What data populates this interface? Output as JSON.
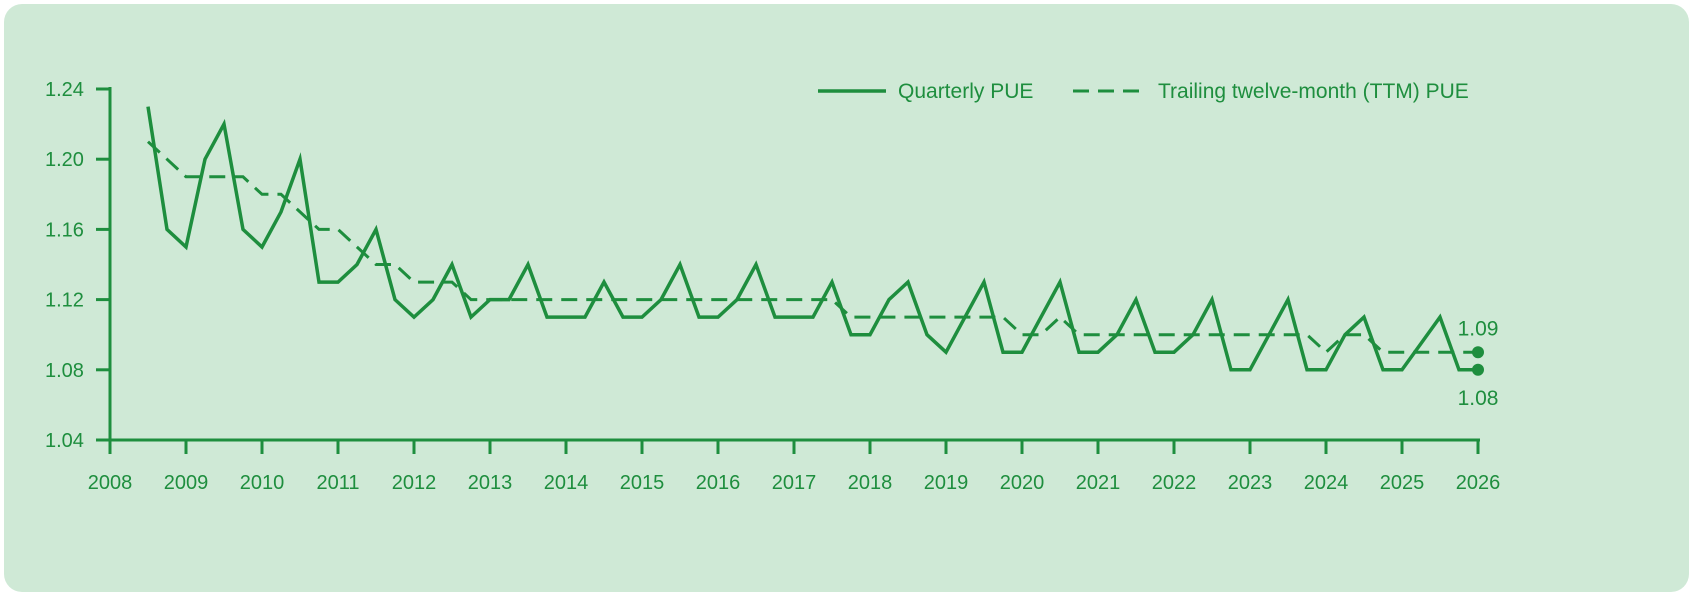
{
  "chart_data": {
    "type": "line",
    "title": "",
    "xlabel": "",
    "ylabel": "",
    "xlim": [
      2008,
      2026
    ],
    "ylim": [
      1.04,
      1.24
    ],
    "x_ticks": [
      "2008",
      "2009",
      "2010",
      "2011",
      "2012",
      "2013",
      "2014",
      "2015",
      "2016",
      "2017",
      "2018",
      "2019",
      "2020",
      "2021",
      "2022",
      "2023",
      "2024",
      "2025",
      "2026"
    ],
    "y_ticks": [
      "1.04",
      "1.08",
      "1.12",
      "1.16",
      "1.20",
      "1.24"
    ],
    "grid": false,
    "legend_position": "top-right",
    "series": [
      {
        "name": "Quarterly PUE",
        "style": "solid",
        "color": "#1e8e3e",
        "points": [
          [
            2008.5,
            1.23
          ],
          [
            2008.75,
            1.16
          ],
          [
            2009.0,
            1.15
          ],
          [
            2009.25,
            1.2
          ],
          [
            2009.5,
            1.22
          ],
          [
            2009.75,
            1.16
          ],
          [
            2010.0,
            1.15
          ],
          [
            2010.25,
            1.17
          ],
          [
            2010.5,
            1.2
          ],
          [
            2010.75,
            1.13
          ],
          [
            2011.0,
            1.13
          ],
          [
            2011.25,
            1.14
          ],
          [
            2011.5,
            1.16
          ],
          [
            2011.75,
            1.12
          ],
          [
            2012.0,
            1.11
          ],
          [
            2012.25,
            1.12
          ],
          [
            2012.5,
            1.14
          ],
          [
            2012.75,
            1.11
          ],
          [
            2013.0,
            1.12
          ],
          [
            2013.25,
            1.12
          ],
          [
            2013.5,
            1.14
          ],
          [
            2013.75,
            1.11
          ],
          [
            2014.0,
            1.11
          ],
          [
            2014.25,
            1.11
          ],
          [
            2014.5,
            1.13
          ],
          [
            2014.75,
            1.11
          ],
          [
            2015.0,
            1.11
          ],
          [
            2015.25,
            1.12
          ],
          [
            2015.5,
            1.14
          ],
          [
            2015.75,
            1.11
          ],
          [
            2016.0,
            1.11
          ],
          [
            2016.25,
            1.12
          ],
          [
            2016.5,
            1.14
          ],
          [
            2016.75,
            1.11
          ],
          [
            2017.0,
            1.11
          ],
          [
            2017.25,
            1.11
          ],
          [
            2017.5,
            1.13
          ],
          [
            2017.75,
            1.1
          ],
          [
            2018.0,
            1.1
          ],
          [
            2018.25,
            1.12
          ],
          [
            2018.5,
            1.13
          ],
          [
            2018.75,
            1.1
          ],
          [
            2019.0,
            1.09
          ],
          [
            2019.25,
            1.11
          ],
          [
            2019.5,
            1.13
          ],
          [
            2019.75,
            1.09
          ],
          [
            2020.0,
            1.09
          ],
          [
            2020.25,
            1.11
          ],
          [
            2020.5,
            1.13
          ],
          [
            2020.75,
            1.09
          ],
          [
            2021.0,
            1.09
          ],
          [
            2021.25,
            1.1
          ],
          [
            2021.5,
            1.12
          ],
          [
            2021.75,
            1.09
          ],
          [
            2022.0,
            1.09
          ],
          [
            2022.25,
            1.1
          ],
          [
            2022.5,
            1.12
          ],
          [
            2022.75,
            1.08
          ],
          [
            2023.0,
            1.08
          ],
          [
            2023.25,
            1.1
          ],
          [
            2023.5,
            1.12
          ],
          [
            2023.75,
            1.08
          ],
          [
            2024.0,
            1.08
          ],
          [
            2024.25,
            1.1
          ],
          [
            2024.5,
            1.11
          ],
          [
            2024.75,
            1.08
          ],
          [
            2025.0,
            1.08
          ],
          [
            2025.25,
            1.095
          ],
          [
            2025.5,
            1.11
          ],
          [
            2025.75,
            1.08
          ],
          [
            2026.0,
            1.08
          ]
        ]
      },
      {
        "name": "Trailing twelve-month (TTM) PUE",
        "style": "dashed",
        "color": "#1e8e3e",
        "points": [
          [
            2008.5,
            1.21
          ],
          [
            2008.75,
            1.2
          ],
          [
            2009.0,
            1.19
          ],
          [
            2009.5,
            1.19
          ],
          [
            2009.75,
            1.19
          ],
          [
            2010.0,
            1.18
          ],
          [
            2010.25,
            1.18
          ],
          [
            2010.5,
            1.17
          ],
          [
            2010.75,
            1.16
          ],
          [
            2011.0,
            1.16
          ],
          [
            2011.25,
            1.15
          ],
          [
            2011.5,
            1.14
          ],
          [
            2011.75,
            1.14
          ],
          [
            2012.0,
            1.13
          ],
          [
            2012.5,
            1.13
          ],
          [
            2012.75,
            1.12
          ],
          [
            2017.5,
            1.12
          ],
          [
            2017.75,
            1.11
          ],
          [
            2019.75,
            1.11
          ],
          [
            2020.0,
            1.1
          ],
          [
            2020.25,
            1.1
          ],
          [
            2020.5,
            1.11
          ],
          [
            2020.75,
            1.1
          ],
          [
            2023.75,
            1.1
          ],
          [
            2024.0,
            1.09
          ],
          [
            2024.25,
            1.1
          ],
          [
            2024.5,
            1.1
          ],
          [
            2024.75,
            1.09
          ],
          [
            2026.0,
            1.09
          ]
        ]
      }
    ],
    "end_markers": [
      {
        "series": "Trailing twelve-month (TTM) PUE",
        "x": 2026,
        "y": 1.09,
        "label": "1.09",
        "label_pos": "above"
      },
      {
        "series": "Quarterly PUE",
        "x": 2026,
        "y": 1.08,
        "label": "1.08",
        "label_pos": "below"
      }
    ]
  }
}
